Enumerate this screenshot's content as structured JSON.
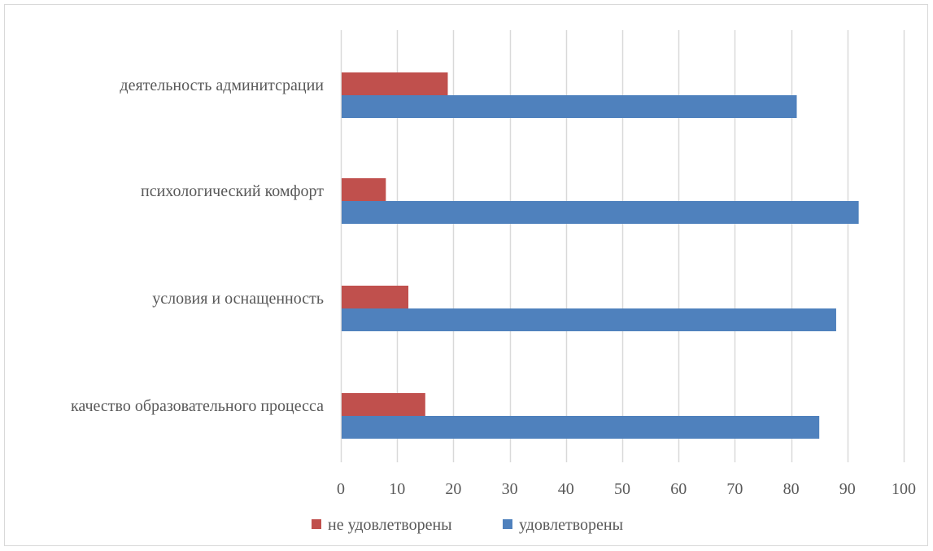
{
  "chart_data": {
    "type": "bar",
    "orientation": "horizontal",
    "categories": [
      "деятельность админитсрации",
      "психологический комфорт",
      "условия и оснащенность",
      "качество образовательного процесса"
    ],
    "series": [
      {
        "name": "не удовлетворены",
        "color": "#c0504d",
        "values": [
          19,
          8,
          12,
          15
        ]
      },
      {
        "name": "удовлетворены",
        "color": "#4f81bd",
        "values": [
          81,
          92,
          88,
          85
        ]
      }
    ],
    "xlim": [
      0,
      100
    ],
    "xticks": [
      0,
      10,
      20,
      30,
      40,
      50,
      60,
      70,
      80,
      90,
      100
    ],
    "grid": true,
    "gridColor": "#d9d9d9",
    "legend_position": "bottom"
  }
}
